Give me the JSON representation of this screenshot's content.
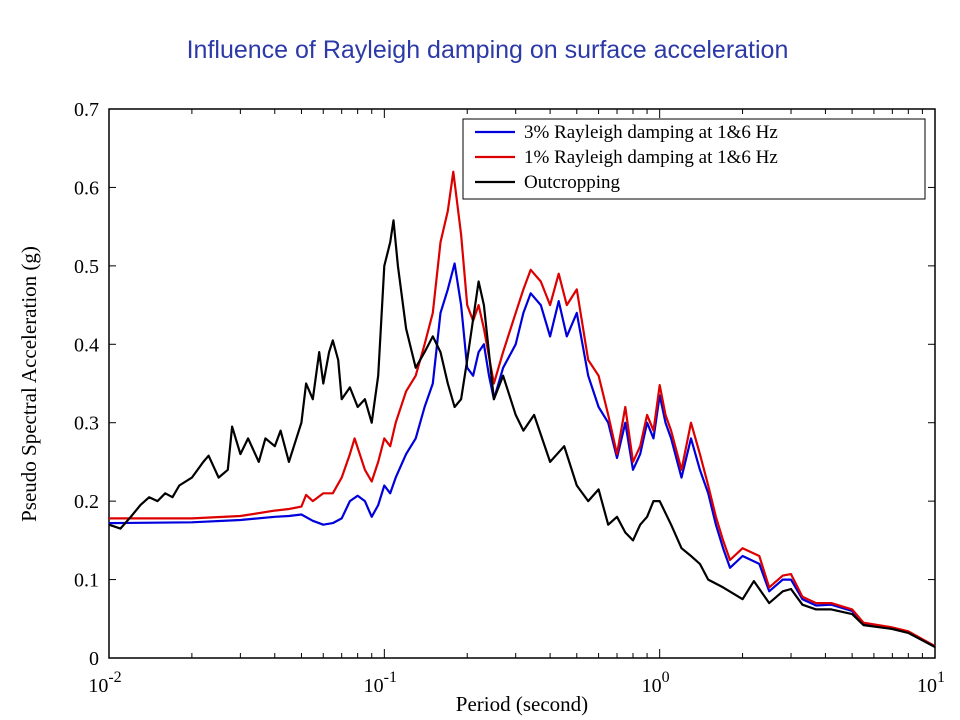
{
  "title": "Influence of Rayleigh damping on surface acceleration",
  "chart_data": {
    "type": "line",
    "xlabel": "Period (second)",
    "ylabel": "Pseudo Spectral Acceleration (g)",
    "xscale": "log",
    "xlim": [
      0.01,
      10
    ],
    "ylim": [
      0,
      0.7
    ],
    "x_ticks": [
      {
        "base": "10",
        "exp": "-2"
      },
      {
        "base": "10",
        "exp": "-1"
      },
      {
        "base": "10",
        "exp": "0"
      },
      {
        "base": "10",
        "exp": "1"
      }
    ],
    "y_ticks": [
      "0",
      "0.1",
      "0.2",
      "0.3",
      "0.4",
      "0.5",
      "0.6",
      "0.7"
    ],
    "legend_position": "top-right",
    "grid": false,
    "series": [
      {
        "name": "3% Rayleigh damping at 1&6 Hz",
        "color": "#0000dd",
        "points": [
          [
            0.01,
            0.172
          ],
          [
            0.02,
            0.173
          ],
          [
            0.03,
            0.176
          ],
          [
            0.04,
            0.18
          ],
          [
            0.045,
            0.181
          ],
          [
            0.05,
            0.183
          ],
          [
            0.055,
            0.175
          ],
          [
            0.06,
            0.17
          ],
          [
            0.065,
            0.172
          ],
          [
            0.07,
            0.178
          ],
          [
            0.075,
            0.2
          ],
          [
            0.08,
            0.207
          ],
          [
            0.085,
            0.2
          ],
          [
            0.09,
            0.18
          ],
          [
            0.095,
            0.195
          ],
          [
            0.1,
            0.22
          ],
          [
            0.105,
            0.21
          ],
          [
            0.11,
            0.23
          ],
          [
            0.12,
            0.26
          ],
          [
            0.13,
            0.28
          ],
          [
            0.14,
            0.32
          ],
          [
            0.15,
            0.35
          ],
          [
            0.16,
            0.44
          ],
          [
            0.17,
            0.47
          ],
          [
            0.18,
            0.503
          ],
          [
            0.19,
            0.45
          ],
          [
            0.2,
            0.37
          ],
          [
            0.21,
            0.36
          ],
          [
            0.22,
            0.39
          ],
          [
            0.23,
            0.4
          ],
          [
            0.24,
            0.36
          ],
          [
            0.25,
            0.33
          ],
          [
            0.27,
            0.37
          ],
          [
            0.3,
            0.4
          ],
          [
            0.32,
            0.44
          ],
          [
            0.34,
            0.465
          ],
          [
            0.37,
            0.45
          ],
          [
            0.4,
            0.41
          ],
          [
            0.43,
            0.455
          ],
          [
            0.46,
            0.41
          ],
          [
            0.5,
            0.44
          ],
          [
            0.55,
            0.36
          ],
          [
            0.6,
            0.32
          ],
          [
            0.65,
            0.3
          ],
          [
            0.7,
            0.255
          ],
          [
            0.75,
            0.3
          ],
          [
            0.8,
            0.24
          ],
          [
            0.85,
            0.26
          ],
          [
            0.9,
            0.3
          ],
          [
            0.95,
            0.28
          ],
          [
            1.0,
            0.335
          ],
          [
            1.05,
            0.3
          ],
          [
            1.1,
            0.28
          ],
          [
            1.2,
            0.23
          ],
          [
            1.3,
            0.28
          ],
          [
            1.4,
            0.24
          ],
          [
            1.5,
            0.21
          ],
          [
            1.6,
            0.17
          ],
          [
            1.7,
            0.14
          ],
          [
            1.8,
            0.115
          ],
          [
            2.0,
            0.13
          ],
          [
            2.3,
            0.12
          ],
          [
            2.5,
            0.085
          ],
          [
            2.8,
            0.1
          ],
          [
            3.0,
            0.1
          ],
          [
            3.3,
            0.075
          ],
          [
            3.7,
            0.067
          ],
          [
            4.2,
            0.068
          ],
          [
            5.0,
            0.06
          ],
          [
            5.5,
            0.043
          ],
          [
            7.0,
            0.038
          ],
          [
            8.0,
            0.033
          ],
          [
            10.0,
            0.015
          ]
        ]
      },
      {
        "name": "1% Rayleigh damping at 1&6 Hz",
        "color": "#dd0000",
        "points": [
          [
            0.01,
            0.178
          ],
          [
            0.02,
            0.178
          ],
          [
            0.03,
            0.181
          ],
          [
            0.04,
            0.188
          ],
          [
            0.045,
            0.19
          ],
          [
            0.05,
            0.193
          ],
          [
            0.052,
            0.208
          ],
          [
            0.055,
            0.2
          ],
          [
            0.06,
            0.21
          ],
          [
            0.065,
            0.21
          ],
          [
            0.07,
            0.23
          ],
          [
            0.075,
            0.26
          ],
          [
            0.078,
            0.28
          ],
          [
            0.085,
            0.24
          ],
          [
            0.09,
            0.225
          ],
          [
            0.095,
            0.25
          ],
          [
            0.1,
            0.28
          ],
          [
            0.105,
            0.27
          ],
          [
            0.11,
            0.3
          ],
          [
            0.12,
            0.34
          ],
          [
            0.13,
            0.36
          ],
          [
            0.14,
            0.4
          ],
          [
            0.15,
            0.44
          ],
          [
            0.16,
            0.53
          ],
          [
            0.17,
            0.57
          ],
          [
            0.178,
            0.62
          ],
          [
            0.19,
            0.54
          ],
          [
            0.2,
            0.45
          ],
          [
            0.21,
            0.43
          ],
          [
            0.22,
            0.45
          ],
          [
            0.23,
            0.42
          ],
          [
            0.25,
            0.35
          ],
          [
            0.27,
            0.39
          ],
          [
            0.3,
            0.44
          ],
          [
            0.32,
            0.47
          ],
          [
            0.34,
            0.495
          ],
          [
            0.37,
            0.48
          ],
          [
            0.4,
            0.45
          ],
          [
            0.43,
            0.49
          ],
          [
            0.46,
            0.45
          ],
          [
            0.5,
            0.47
          ],
          [
            0.55,
            0.38
          ],
          [
            0.6,
            0.36
          ],
          [
            0.65,
            0.31
          ],
          [
            0.7,
            0.26
          ],
          [
            0.75,
            0.32
          ],
          [
            0.8,
            0.25
          ],
          [
            0.85,
            0.27
          ],
          [
            0.9,
            0.31
          ],
          [
            0.95,
            0.29
          ],
          [
            1.0,
            0.348
          ],
          [
            1.05,
            0.31
          ],
          [
            1.1,
            0.29
          ],
          [
            1.2,
            0.24
          ],
          [
            1.3,
            0.3
          ],
          [
            1.4,
            0.26
          ],
          [
            1.5,
            0.22
          ],
          [
            1.6,
            0.18
          ],
          [
            1.7,
            0.15
          ],
          [
            1.8,
            0.125
          ],
          [
            2.0,
            0.14
          ],
          [
            2.3,
            0.13
          ],
          [
            2.5,
            0.09
          ],
          [
            2.8,
            0.105
          ],
          [
            3.0,
            0.107
          ],
          [
            3.3,
            0.078
          ],
          [
            3.7,
            0.07
          ],
          [
            4.2,
            0.07
          ],
          [
            5.0,
            0.062
          ],
          [
            5.5,
            0.045
          ],
          [
            7.0,
            0.039
          ],
          [
            8.0,
            0.034
          ],
          [
            10.0,
            0.015
          ]
        ]
      },
      {
        "name": "Outcropping",
        "color": "#000000",
        "points": [
          [
            0.01,
            0.17
          ],
          [
            0.011,
            0.165
          ],
          [
            0.012,
            0.18
          ],
          [
            0.013,
            0.195
          ],
          [
            0.014,
            0.205
          ],
          [
            0.015,
            0.2
          ],
          [
            0.016,
            0.21
          ],
          [
            0.017,
            0.205
          ],
          [
            0.018,
            0.22
          ],
          [
            0.02,
            0.23
          ],
          [
            0.022,
            0.25
          ],
          [
            0.023,
            0.258
          ],
          [
            0.025,
            0.23
          ],
          [
            0.027,
            0.24
          ],
          [
            0.028,
            0.295
          ],
          [
            0.03,
            0.26
          ],
          [
            0.032,
            0.28
          ],
          [
            0.035,
            0.25
          ],
          [
            0.037,
            0.28
          ],
          [
            0.04,
            0.27
          ],
          [
            0.042,
            0.29
          ],
          [
            0.045,
            0.25
          ],
          [
            0.05,
            0.3
          ],
          [
            0.052,
            0.35
          ],
          [
            0.055,
            0.33
          ],
          [
            0.058,
            0.39
          ],
          [
            0.06,
            0.35
          ],
          [
            0.063,
            0.39
          ],
          [
            0.065,
            0.405
          ],
          [
            0.068,
            0.38
          ],
          [
            0.07,
            0.33
          ],
          [
            0.075,
            0.345
          ],
          [
            0.08,
            0.32
          ],
          [
            0.085,
            0.33
          ],
          [
            0.09,
            0.3
          ],
          [
            0.095,
            0.36
          ],
          [
            0.1,
            0.5
          ],
          [
            0.105,
            0.53
          ],
          [
            0.108,
            0.558
          ],
          [
            0.112,
            0.5
          ],
          [
            0.12,
            0.42
          ],
          [
            0.13,
            0.37
          ],
          [
            0.14,
            0.39
          ],
          [
            0.15,
            0.41
          ],
          [
            0.16,
            0.39
          ],
          [
            0.17,
            0.35
          ],
          [
            0.18,
            0.32
          ],
          [
            0.19,
            0.33
          ],
          [
            0.2,
            0.38
          ],
          [
            0.22,
            0.48
          ],
          [
            0.23,
            0.45
          ],
          [
            0.25,
            0.33
          ],
          [
            0.27,
            0.36
          ],
          [
            0.3,
            0.31
          ],
          [
            0.32,
            0.29
          ],
          [
            0.35,
            0.31
          ],
          [
            0.4,
            0.25
          ],
          [
            0.45,
            0.27
          ],
          [
            0.5,
            0.22
          ],
          [
            0.55,
            0.2
          ],
          [
            0.6,
            0.215
          ],
          [
            0.65,
            0.17
          ],
          [
            0.7,
            0.18
          ],
          [
            0.75,
            0.16
          ],
          [
            0.8,
            0.15
          ],
          [
            0.85,
            0.17
          ],
          [
            0.9,
            0.18
          ],
          [
            0.95,
            0.2
          ],
          [
            1.0,
            0.2
          ],
          [
            1.1,
            0.17
          ],
          [
            1.2,
            0.14
          ],
          [
            1.3,
            0.13
          ],
          [
            1.4,
            0.12
          ],
          [
            1.5,
            0.1
          ],
          [
            1.7,
            0.09
          ],
          [
            2.0,
            0.075
          ],
          [
            2.2,
            0.098
          ],
          [
            2.5,
            0.07
          ],
          [
            2.8,
            0.085
          ],
          [
            3.0,
            0.088
          ],
          [
            3.3,
            0.068
          ],
          [
            3.7,
            0.062
          ],
          [
            4.2,
            0.062
          ],
          [
            5.0,
            0.056
          ],
          [
            5.5,
            0.042
          ],
          [
            7.0,
            0.037
          ],
          [
            8.0,
            0.032
          ],
          [
            10.0,
            0.014
          ]
        ]
      }
    ]
  }
}
